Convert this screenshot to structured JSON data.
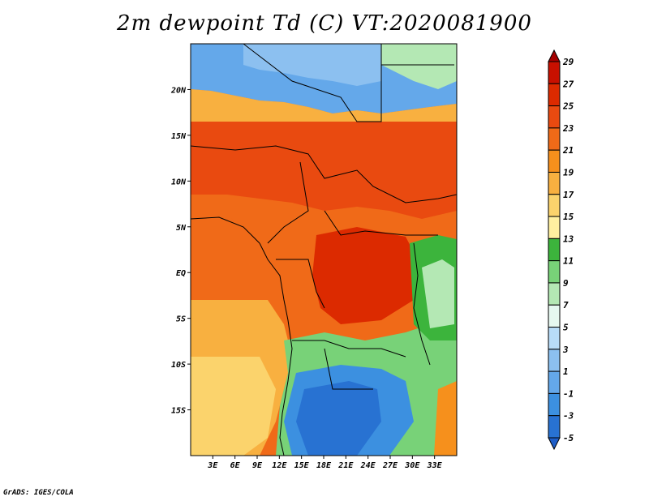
{
  "title": "2m dewpoint Td (C) VT:2020081900",
  "credit": "GrADS: IGES/COLA",
  "map": {
    "lon_range": [
      0,
      36
    ],
    "lat_range": [
      -20,
      25
    ],
    "lon_ticks": [
      {
        "lon": 3,
        "label": "3E"
      },
      {
        "lon": 6,
        "label": "6E"
      },
      {
        "lon": 9,
        "label": "9E"
      },
      {
        "lon": 12,
        "label": "12E"
      },
      {
        "lon": 15,
        "label": "15E"
      },
      {
        "lon": 18,
        "label": "18E"
      },
      {
        "lon": 21,
        "label": "21E"
      },
      {
        "lon": 24,
        "label": "24E"
      },
      {
        "lon": 27,
        "label": "27E"
      },
      {
        "lon": 30,
        "label": "30E"
      },
      {
        "lon": 33,
        "label": "33E"
      }
    ],
    "lat_ticks": [
      {
        "lat": 20,
        "label": "20N"
      },
      {
        "lat": 15,
        "label": "15N"
      },
      {
        "lat": 10,
        "label": "10N"
      },
      {
        "lat": 5,
        "label": "5N"
      },
      {
        "lat": 0,
        "label": "EQ"
      },
      {
        "lat": -5,
        "label": "5S"
      },
      {
        "lat": -10,
        "label": "10S"
      },
      {
        "lat": -15,
        "label": "15S"
      }
    ]
  },
  "colorbar": {
    "labels": [
      "29",
      "27",
      "25",
      "23",
      "21",
      "19",
      "17",
      "15",
      "13",
      "11",
      "9",
      "7",
      "5",
      "3",
      "1",
      "-1",
      "-3",
      "-5"
    ],
    "colors": [
      "#a50000",
      "#c81000",
      "#dc2a00",
      "#e94a10",
      "#f06a18",
      "#f6901c",
      "#f8b040",
      "#fbd36c",
      "#fff0a0",
      "#3cb43c",
      "#78d278",
      "#b4e8b4",
      "#e6f8f0",
      "#b8dcf8",
      "#8cc0f0",
      "#64a8ea",
      "#3c90e0",
      "#2872d2",
      "#1e5ec8"
    ]
  }
}
